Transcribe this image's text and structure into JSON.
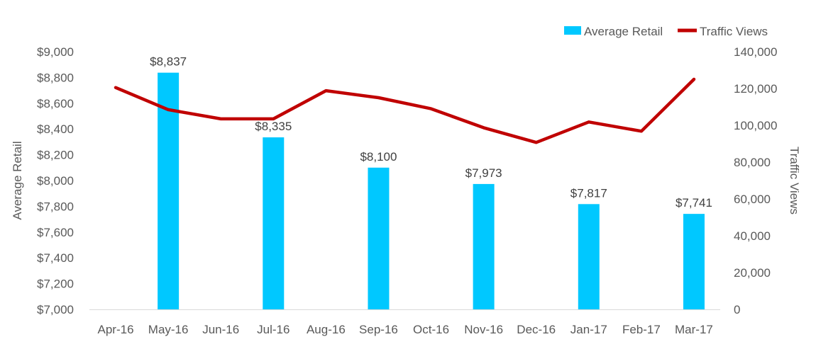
{
  "chart_data": {
    "type": "bar",
    "categories": [
      "Apr-16",
      "May-16",
      "Jun-16",
      "Jul-16",
      "Aug-16",
      "Sep-16",
      "Oct-16",
      "Nov-16",
      "Dec-16",
      "Jan-17",
      "Feb-17",
      "Mar-17"
    ],
    "series": [
      {
        "name": "Average Retail",
        "type": "bar",
        "axis": "left",
        "color": "#00C8FF",
        "values": [
          null,
          8837,
          null,
          8335,
          null,
          8100,
          null,
          7973,
          null,
          7817,
          null,
          7741
        ],
        "labels": [
          null,
          "$8,837",
          null,
          "$8,335",
          null,
          "$8,100",
          null,
          "$7,973",
          null,
          "$7,817",
          null,
          "$7,741"
        ]
      },
      {
        "name": "Traffic Views",
        "type": "line",
        "axis": "right",
        "color": "#C00000",
        "values": [
          120500,
          108500,
          103500,
          103500,
          118800,
          115000,
          109000,
          98700,
          90700,
          101800,
          96800,
          125000
        ]
      }
    ],
    "ylabel": "Average Retail",
    "y2label": "Traffic Views",
    "ylim": [
      7000,
      9000
    ],
    "y2lim": [
      0,
      140000
    ],
    "yticks": [
      "$7,000",
      "$7,200",
      "$7,400",
      "$7,600",
      "$7,800",
      "$8,000",
      "$8,200",
      "$8,400",
      "$8,600",
      "$8,800",
      "$9,000"
    ],
    "y2ticks": [
      "0",
      "20,000",
      "40,000",
      "60,000",
      "80,000",
      "100,000",
      "120,000",
      "140,000"
    ],
    "grid": false,
    "legend_position": "top-right"
  }
}
